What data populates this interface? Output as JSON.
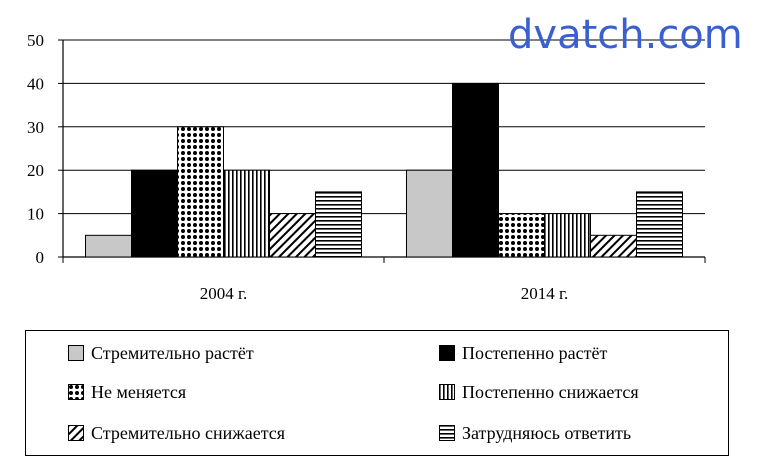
{
  "watermark": "dvatch.com",
  "chart_data": {
    "type": "bar",
    "categories": [
      "2004 г.",
      "2014 г."
    ],
    "ylim": [
      0,
      50
    ],
    "yticks": [
      0,
      10,
      20,
      30,
      40,
      50
    ],
    "grid": true,
    "legend": "bottom",
    "series": [
      {
        "name": "Стремительно растёт",
        "pattern": "light-gray",
        "color": "#c8c8c8",
        "values": [
          5,
          20
        ]
      },
      {
        "name": "Постепенно растёт",
        "pattern": "black",
        "color": "#000000",
        "values": [
          20,
          40
        ]
      },
      {
        "name": "Не меняется",
        "pattern": "checker",
        "color": "#000000",
        "values": [
          30,
          10
        ]
      },
      {
        "name": "Постепенно снижается",
        "pattern": "vertical-lines",
        "color": "#000000",
        "values": [
          20,
          10
        ]
      },
      {
        "name": "Стремительно снижается",
        "pattern": "diagonal-lines",
        "color": "#000000",
        "values": [
          10,
          5
        ]
      },
      {
        "name": "Затрудняюсь ответить",
        "pattern": "horizontal-lines",
        "color": "#000000",
        "values": [
          15,
          15
        ]
      }
    ]
  }
}
